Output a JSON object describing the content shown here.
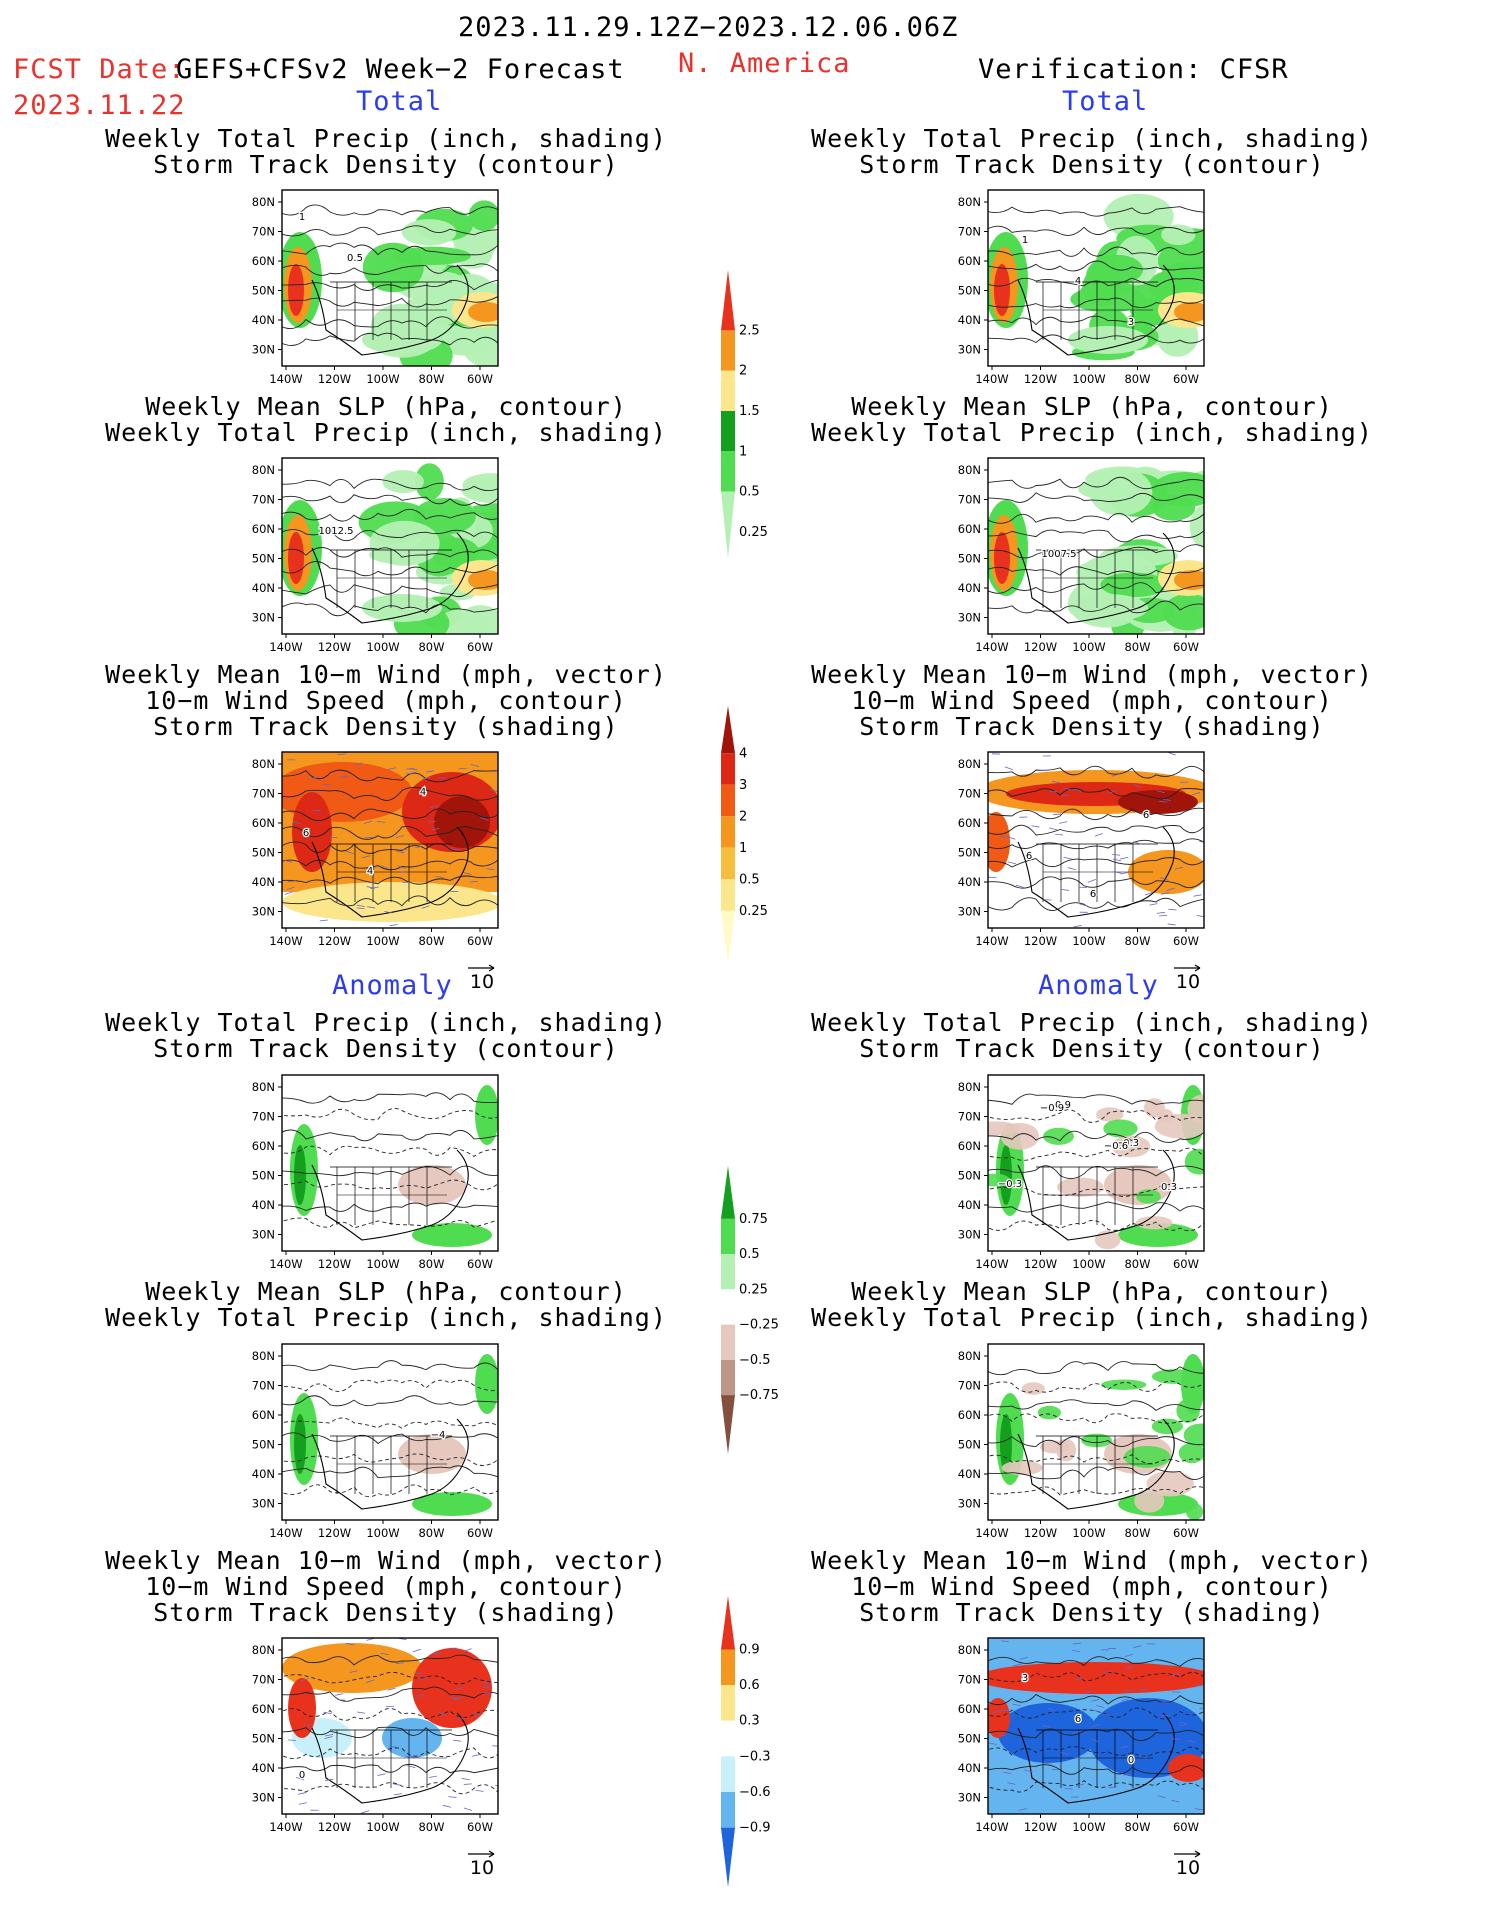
{
  "header": {
    "period": "2023.11.29.12Z−2023.12.06.06Z",
    "fcst_label": "FCST Date:",
    "fcst_model": "GEFS+CFSv2 Week−2 Forecast",
    "fcst_date": "2023.11.22",
    "region": "N. America",
    "verification": "Verification: CFSR"
  },
  "sections": {
    "total": "Total",
    "anomaly": "Anomaly"
  },
  "titles": {
    "precip_storm": [
      "Weekly Total Precip (inch, shading)",
      "Storm Track Density (contour)"
    ],
    "slp_precip": [
      "Weekly Mean SLP (hPa, contour)",
      "Weekly Total Precip (inch, shading)"
    ],
    "wind_storm": [
      "Weekly Mean 10−m Wind (mph, vector)",
      "10−m Wind Speed (mph, contour)",
      "Storm Track Density (shading)"
    ]
  },
  "axes": {
    "lat_labels": [
      "80N",
      "70N",
      "60N",
      "50N",
      "40N",
      "30N"
    ],
    "lon_labels": [
      "140W",
      "120W",
      "100W",
      "80W",
      "60W"
    ]
  },
  "vector_scale": "10",
  "contour_labels": {
    "fc_precip_total": [
      "1",
      "0.5"
    ],
    "ver_precip_total": [
      "1",
      "4",
      "3"
    ],
    "fc_slp_total": [
      "1012.5"
    ],
    "ver_slp_total": [
      "1007.5"
    ],
    "fc_wind_total": [
      "4",
      "4",
      "6"
    ],
    "ver_wind_total": [
      "6",
      "6",
      "6"
    ],
    "ver_precip_anom": [
      "−0.3",
      "−0.3",
      "0.9",
      "−0.6",
      "0.3",
      "−0.9"
    ],
    "fc_slp_anom": [
      "−4"
    ],
    "fc_wind_anom": [
      "0"
    ],
    "ver_wind_anom": [
      "3",
      "6",
      "0"
    ]
  },
  "colorbars": {
    "precip_total": {
      "labels": [
        "2.5",
        "2",
        "1.5",
        "1",
        "0.5",
        "0.25"
      ],
      "colors": [
        "#e8321e",
        "#f5961e",
        "#fbe68c",
        "#14a01e",
        "#50dc50",
        "#b4f0b4"
      ]
    },
    "storm_total": {
      "labels": [
        "4",
        "3",
        "2",
        "1",
        "0.5",
        "0.25"
      ],
      "colors": [
        "#a0140a",
        "#dc2814",
        "#f05a14",
        "#f5961e",
        "#f5be3c",
        "#fbe68c",
        "#fffac8"
      ]
    },
    "precip_anom": {
      "labels": [
        "0.75",
        "0.5",
        "0.25",
        "−0.25",
        "−0.5",
        "−0.75"
      ],
      "colors": [
        "#14a01e",
        "#50dc50",
        "#b4f0b4",
        "#ffffff",
        "#e6c8be",
        "#be9687",
        "#82503c"
      ]
    },
    "storm_anom": {
      "labels": [
        "0.9",
        "0.6",
        "0.3",
        "−0.3",
        "−0.6",
        "−0.9"
      ],
      "colors": [
        "#e8321e",
        "#f5961e",
        "#fbe68c",
        "#ffffff",
        "#c8f0fa",
        "#64b4f0",
        "#1e64dc"
      ]
    }
  }
}
